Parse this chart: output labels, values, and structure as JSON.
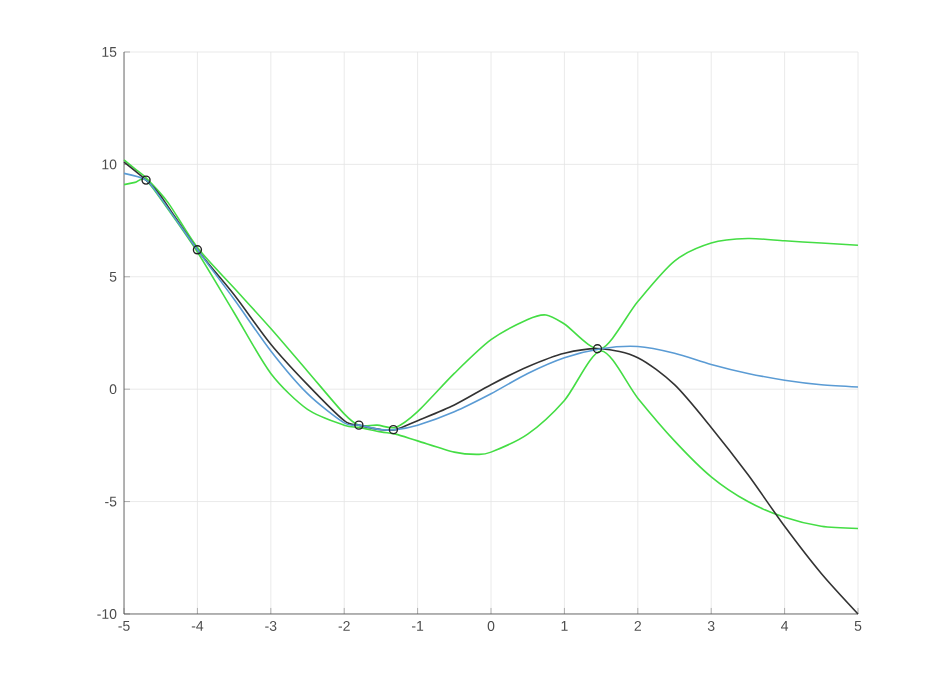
{
  "chart_data": {
    "type": "line",
    "xlim": [
      -5,
      5
    ],
    "ylim": [
      -10,
      15
    ],
    "xticks": [
      -5,
      -4,
      -3,
      -2,
      -1,
      0,
      1,
      2,
      3,
      4,
      5
    ],
    "yticks": [
      -10,
      -5,
      0,
      5,
      10,
      15
    ],
    "grid": true,
    "series": [
      {
        "color": "#44dd44",
        "x": [
          -5,
          -4.85,
          -4.7,
          -4.4,
          -4,
          -3.5,
          -3,
          -2.5,
          -2,
          -1.8,
          -1.55,
          -1.3,
          -1,
          -0.5,
          0,
          0.5,
          0.75,
          1,
          1.5,
          2,
          2.5,
          3,
          3.5,
          4,
          4.5,
          5
        ],
        "values": [
          10.2,
          9.8,
          9.4,
          8.3,
          6.3,
          4.5,
          2.7,
          0.8,
          -1.1,
          -1.6,
          -1.6,
          -1.7,
          -1.0,
          0.7,
          2.2,
          3.1,
          3.3,
          2.9,
          1.8,
          3.9,
          5.7,
          6.5,
          6.7,
          6.6,
          6.5,
          6.4
        ]
      },
      {
        "color": "#44dd44",
        "x": [
          -5,
          -4.85,
          -4.7,
          -4.4,
          -4,
          -3.5,
          -3,
          -2.5,
          -2,
          -1.8,
          -1.5,
          -1.3,
          -1,
          -0.5,
          -0.2,
          0,
          0.5,
          1,
          1.5,
          2,
          2.5,
          3,
          3.5,
          4,
          4.5,
          5
        ],
        "values": [
          9.1,
          9.2,
          9.3,
          8.0,
          6.1,
          3.4,
          0.7,
          -0.9,
          -1.6,
          -1.7,
          -1.9,
          -2.0,
          -2.3,
          -2.8,
          -2.9,
          -2.8,
          -2.0,
          -0.5,
          1.7,
          -0.4,
          -2.3,
          -3.9,
          -5.0,
          -5.7,
          -6.1,
          -6.2
        ]
      },
      {
        "color": "#333333",
        "x": [
          -5,
          -4.7,
          -4.5,
          -4,
          -3.5,
          -3,
          -2.5,
          -2,
          -1.8,
          -1.5,
          -1.3,
          -1,
          -0.5,
          0,
          0.5,
          1,
          1.5,
          2,
          2.5,
          3,
          3.5,
          4,
          4.5,
          5
        ],
        "values": [
          10.1,
          9.3,
          8.6,
          6.2,
          4.2,
          2.0,
          0.2,
          -1.4,
          -1.6,
          -1.8,
          -1.8,
          -1.4,
          -0.7,
          0.2,
          1.0,
          1.6,
          1.8,
          1.4,
          0.2,
          -1.7,
          -3.8,
          -6.1,
          -8.2,
          -10
        ]
      },
      {
        "color": "#5a9bd4",
        "x": [
          -5,
          -4.7,
          -4.5,
          -4,
          -3.5,
          -3,
          -2.5,
          -2,
          -1.8,
          -1.5,
          -1.3,
          -1,
          -0.5,
          0,
          0.5,
          1,
          1.5,
          2,
          2.5,
          3,
          3.5,
          4,
          4.5,
          5
        ],
        "values": [
          9.6,
          9.3,
          8.5,
          6.2,
          4.0,
          1.7,
          -0.2,
          -1.5,
          -1.6,
          -1.8,
          -1.8,
          -1.6,
          -1.0,
          -0.2,
          0.7,
          1.4,
          1.8,
          1.9,
          1.6,
          1.1,
          0.7,
          0.4,
          0.2,
          0.1
        ]
      },
      {
        "type": "scatter",
        "marker": "circle",
        "color": "#222222",
        "x": [
          -4.7,
          -4.0,
          -1.8,
          -1.33,
          1.45
        ],
        "values": [
          9.3,
          6.2,
          -1.6,
          -1.8,
          1.8
        ]
      }
    ]
  }
}
